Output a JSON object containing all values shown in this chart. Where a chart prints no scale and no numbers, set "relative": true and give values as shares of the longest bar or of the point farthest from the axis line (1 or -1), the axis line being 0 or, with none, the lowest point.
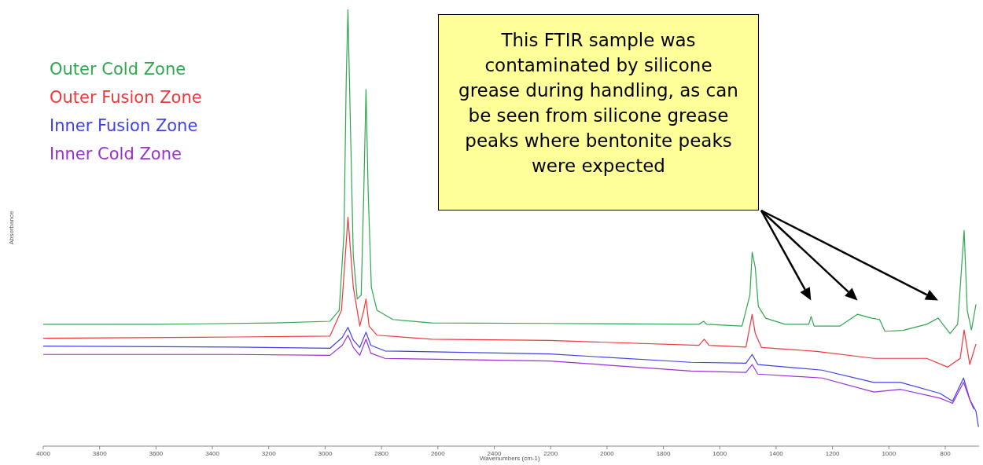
{
  "chart_data": {
    "type": "line",
    "relative": true,
    "xlabel": "Wavenumbers (cm-1)",
    "ylabel": "Absorbance",
    "xlim": [
      4000,
      680
    ],
    "xticks": [
      4000,
      3800,
      3600,
      3400,
      3200,
      3000,
      2800,
      2600,
      2400,
      2200,
      2000,
      1800,
      1600,
      1400,
      1200,
      1000,
      800
    ],
    "grid": false,
    "legend": "top left",
    "marker": "none",
    "line_style": "solid",
    "annotations": [
      "This FTIR sample was contaminated by silicone grease during handling, as can be seen from silicone grease peaks where bentonite peaks were expected"
    ],
    "series": [
      {
        "name": "Outer Cold Zone",
        "color": "#2ea84f",
        "x": [
          4000,
          3596,
          3178,
          2983,
          2950,
          2933,
          2925,
          2919,
          2911,
          2900,
          2886,
          2872,
          2863,
          2855,
          2847,
          2836,
          2816,
          2760,
          2621,
          2203,
          1674,
          1657,
          1646,
          1521,
          1493,
          1485,
          1474,
          1463,
          1437,
          1368,
          1284,
          1276,
          1265,
          1173,
          1111,
          1061,
          1033,
          1014,
          950,
          866,
          825,
          783,
          756,
          744,
          733,
          722,
          707,
          691
        ],
        "values": [
          0.279,
          0.279,
          0.282,
          0.286,
          0.311,
          0.488,
          0.844,
          1,
          0.755,
          0.435,
          0.337,
          0.346,
          0.577,
          0.817,
          0.577,
          0.364,
          0.311,
          0.29,
          0.282,
          0.281,
          0.279,
          0.286,
          0.279,
          0.275,
          0.346,
          0.444,
          0.409,
          0.32,
          0.293,
          0.279,
          0.279,
          0.297,
          0.275,
          0.275,
          0.302,
          0.293,
          0.29,
          0.263,
          0.265,
          0.279,
          0.293,
          0.258,
          0.279,
          0.391,
          0.494,
          0.311,
          0.266,
          0.325
        ]
      },
      {
        "name": "Outer Fusion Zone",
        "color": "#f0383c",
        "x": [
          4000,
          3318,
          2983,
          2942,
          2919,
          2900,
          2877,
          2863,
          2855,
          2844,
          2816,
          2621,
          2203,
          1674,
          1655,
          1638,
          1507,
          1493,
          1485,
          1474,
          1452,
          1256,
          1053,
          866,
          791,
          747,
          733,
          713,
          691
        ],
        "values": [
          0.247,
          0.25,
          0.252,
          0.311,
          0.524,
          0.364,
          0.275,
          0.311,
          0.337,
          0.275,
          0.254,
          0.245,
          0.242,
          0.231,
          0.245,
          0.231,
          0.227,
          0.275,
          0.302,
          0.258,
          0.226,
          0.217,
          0.201,
          0.201,
          0.181,
          0.201,
          0.266,
          0.187,
          0.234
        ]
      },
      {
        "name": "Inner Fusion Zone",
        "color": "#4040e8",
        "x": [
          4000,
          3318,
          2983,
          2939,
          2919,
          2900,
          2877,
          2855,
          2838,
          2788,
          2203,
          1702,
          1507,
          1485,
          1465,
          1237,
          1053,
          958,
          819,
          774,
          735,
          713,
          691,
          682
        ],
        "values": [
          0.229,
          0.227,
          0.224,
          0.249,
          0.272,
          0.243,
          0.226,
          0.261,
          0.231,
          0.218,
          0.211,
          0.192,
          0.19,
          0.21,
          0.187,
          0.174,
          0.146,
          0.146,
          0.121,
          0.103,
          0.156,
          0.107,
          0.08,
          0.044
        ]
      },
      {
        "name": "Inner Cold Zone",
        "color": "#9a2fd6",
        "x": [
          4000,
          3318,
          2983,
          2939,
          2919,
          2900,
          2877,
          2855,
          2838,
          2788,
          2203,
          1702,
          1507,
          1485,
          1465,
          1237,
          1053,
          958,
          819,
          774,
          735,
          713,
          699
        ],
        "values": [
          0.21,
          0.21,
          0.208,
          0.231,
          0.254,
          0.226,
          0.208,
          0.245,
          0.213,
          0.201,
          0.195,
          0.172,
          0.169,
          0.187,
          0.165,
          0.156,
          0.124,
          0.13,
          0.11,
          0.098,
          0.146,
          0.107,
          0.085
        ]
      }
    ]
  }
}
